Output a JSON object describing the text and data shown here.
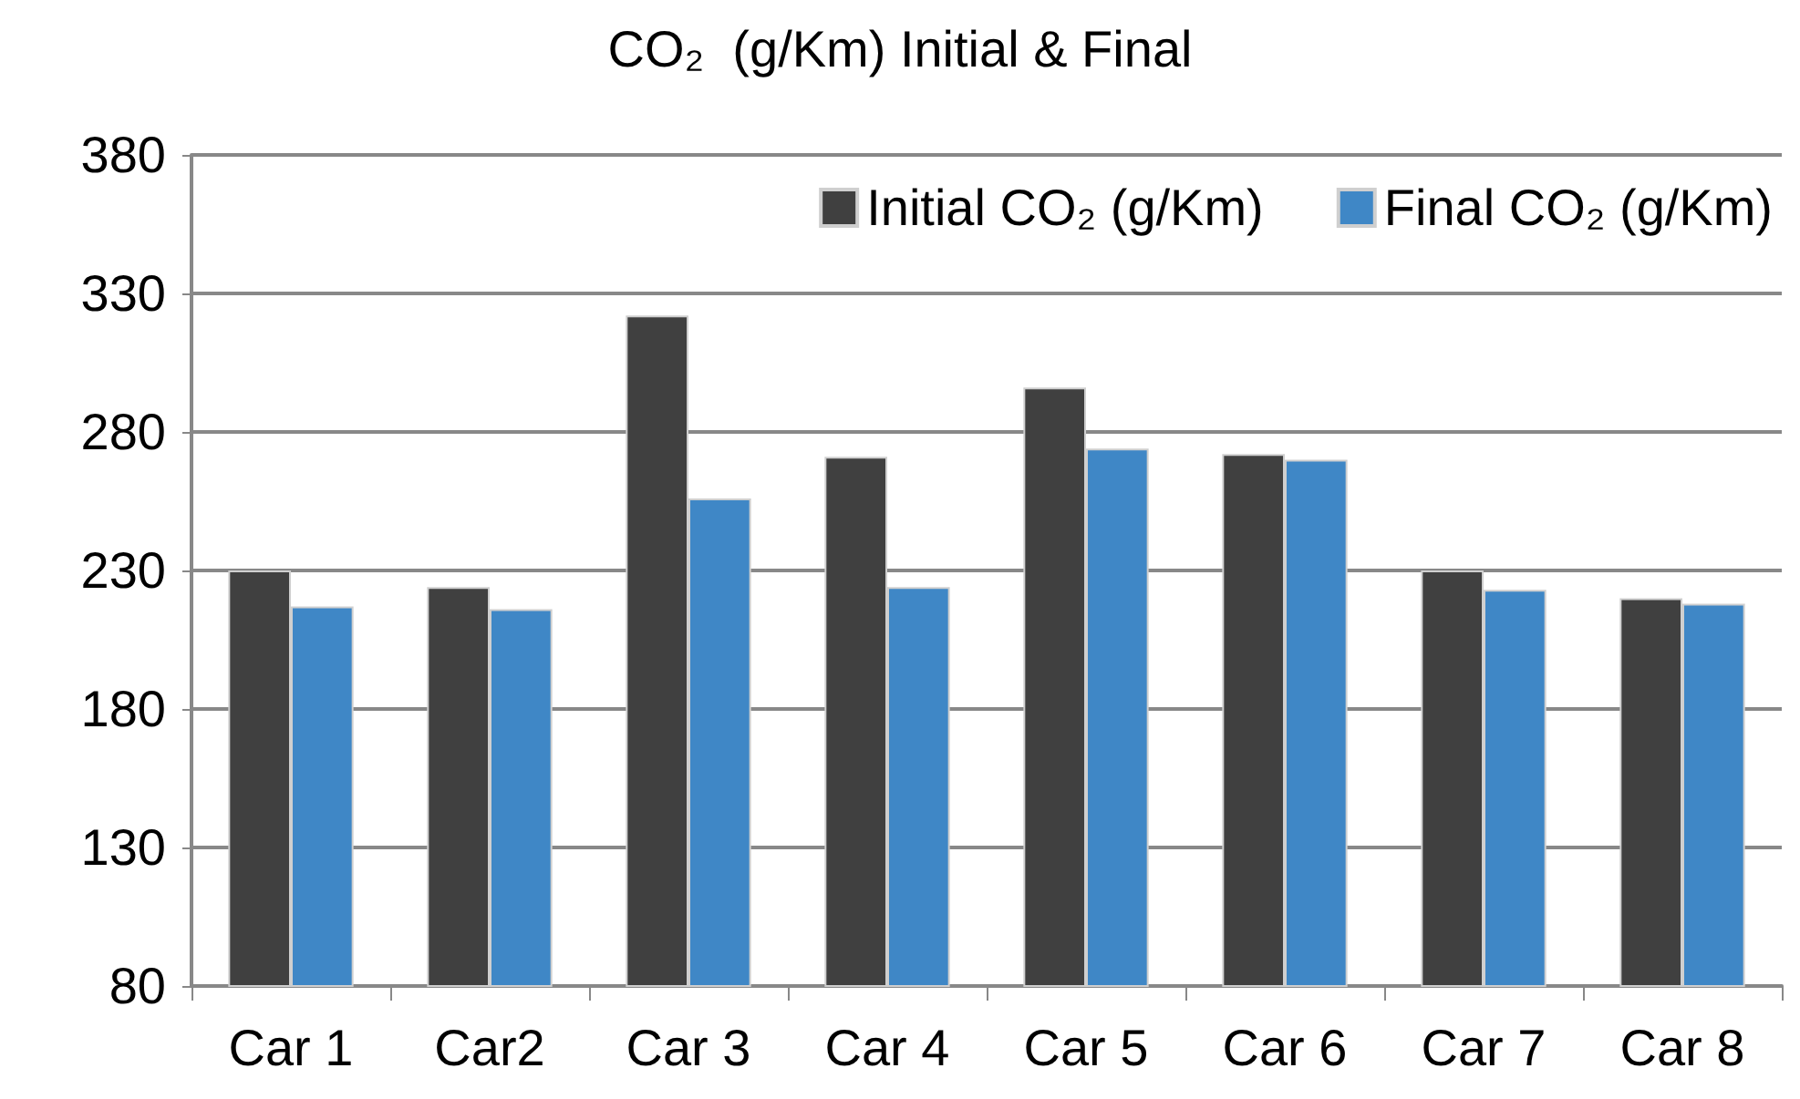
{
  "chart_data": {
    "type": "bar",
    "title": "CO₂  (g/Km) Initial & Final",
    "categories": [
      "Car 1",
      "Car2",
      "Car 3",
      "Car 4",
      "Car 5",
      "Car 6",
      "Car 7",
      "Car 8"
    ],
    "series": [
      {
        "name": "Initial CO₂ (g/Km)",
        "color": "#404040",
        "values": [
          230,
          224,
          322,
          271,
          296,
          272,
          230,
          220
        ]
      },
      {
        "name": "Final CO₂ (g/Km)",
        "color": "#3f87c6",
        "values": [
          217,
          216,
          256,
          224,
          274,
          270,
          223,
          218
        ]
      }
    ],
    "ylim": [
      80,
      380
    ],
    "yticks": [
      80,
      130,
      180,
      230,
      280,
      330,
      380
    ],
    "grid": "y",
    "legend": "top right"
  }
}
